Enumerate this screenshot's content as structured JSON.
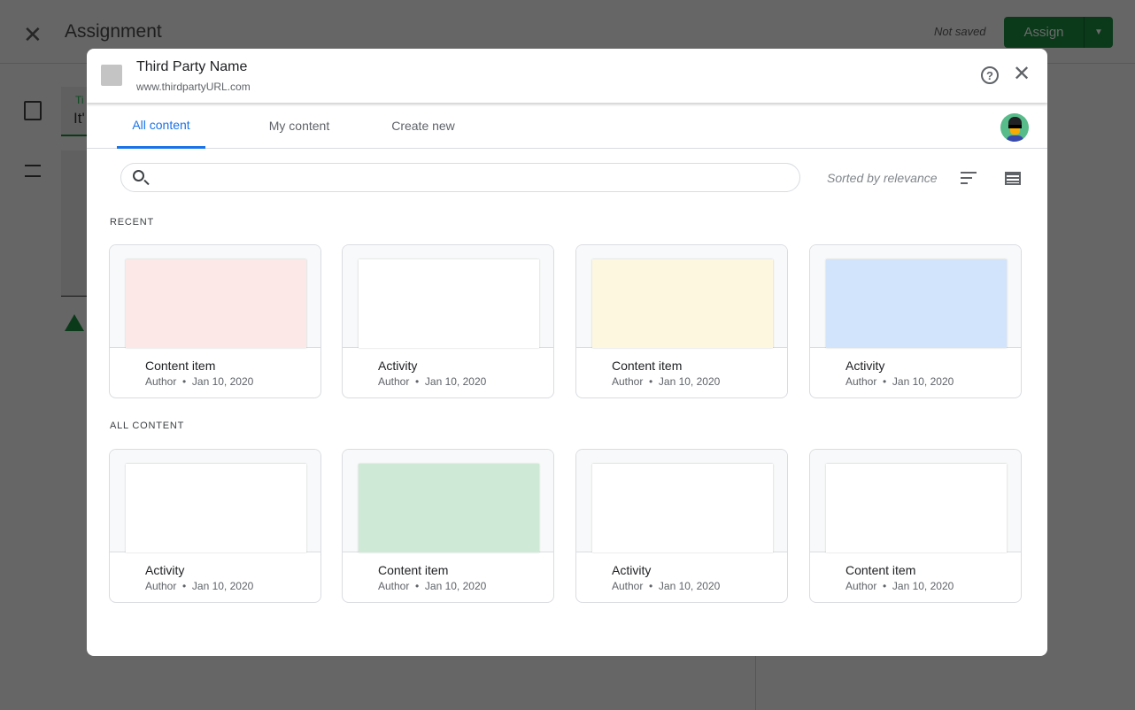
{
  "background": {
    "title": "Assignment",
    "status": "Not saved",
    "assign_label": "Assign",
    "field_label": "Ti",
    "field_value": "It'"
  },
  "modal": {
    "name": "Third Party Name",
    "url": "www.thirdpartyURL.com",
    "tabs": [
      {
        "label": "All content",
        "active": true
      },
      {
        "label": "My content"
      },
      {
        "label": "Create new"
      }
    ],
    "search_placeholder": "",
    "sort_label": "Sorted by relevance",
    "sections": [
      {
        "label": "RECENT",
        "items": [
          {
            "title": "Content item",
            "author": "Author",
            "date": "Jan 10, 2020",
            "color": "#fce8e6"
          },
          {
            "title": "Activity",
            "author": "Author",
            "date": "Jan 10, 2020",
            "color": "#ffffff"
          },
          {
            "title": "Content item",
            "author": "Author",
            "date": "Jan 10, 2020",
            "color": "#fef7e0"
          },
          {
            "title": "Activity",
            "author": "Author",
            "date": "Jan 10, 2020",
            "color": "#d2e3fc"
          }
        ]
      },
      {
        "label": "ALL CONTENT",
        "items": [
          {
            "title": "Activity",
            "author": "Author",
            "date": "Jan 10, 2020",
            "color": "#ffffff"
          },
          {
            "title": "Content item",
            "author": "Author",
            "date": "Jan 10, 2020",
            "color": "#ceead6"
          },
          {
            "title": "Activity",
            "author": "Author",
            "date": "Jan 10, 2020",
            "color": "#ffffff"
          },
          {
            "title": "Content item",
            "author": "Author",
            "date": "Jan 10, 2020",
            "color": "#ffffff"
          }
        ]
      }
    ]
  }
}
